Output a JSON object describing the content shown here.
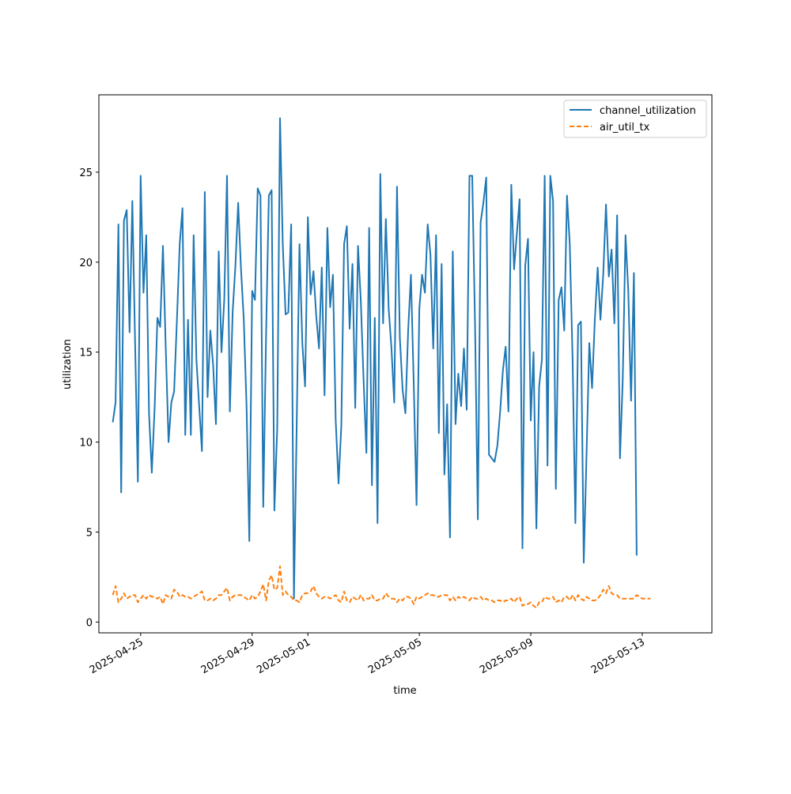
{
  "chart_data": {
    "type": "line",
    "xlabel": "time",
    "ylabel": "utilization",
    "x_axis_type": "date",
    "xlim": [
      "2025-04-23T12:00",
      "2025-05-15T12:00"
    ],
    "ylim": [
      -0.6,
      29.3
    ],
    "x_ticks": [
      "2025-04-25",
      "2025-04-29",
      "2025-05-01",
      "2025-05-05",
      "2025-05-09",
      "2025-05-13"
    ],
    "y_ticks": [
      0,
      5,
      10,
      15,
      20,
      25
    ],
    "grid": false,
    "legend_position": "top-right",
    "start": "2025-04-24T00:00",
    "step_hours": 2.4,
    "series": [
      {
        "name": "channel_utilization",
        "color": "#1f77b4",
        "style": "solid",
        "values": [
          11.1,
          12.2,
          22.1,
          7.2,
          22.3,
          22.9,
          16.1,
          23.4,
          15.5,
          7.8,
          24.8,
          18.3,
          21.5,
          11.6,
          8.3,
          11.9,
          16.9,
          16.4,
          20.9,
          15.3,
          10.0,
          12.2,
          12.8,
          16.7,
          21.0,
          23.0,
          10.4,
          16.8,
          10.4,
          21.5,
          14.6,
          12.0,
          9.5,
          23.9,
          12.5,
          16.2,
          14.3,
          11.0,
          20.6,
          15.0,
          17.9,
          24.8,
          11.7,
          17.2,
          19.8,
          23.3,
          19.6,
          16.8,
          12.0,
          4.5,
          18.4,
          17.9,
          24.1,
          23.7,
          6.4,
          16.0,
          23.7,
          24.0,
          6.2,
          10.8,
          28.0,
          21.0,
          17.1,
          17.2,
          22.1,
          1.3,
          11.0,
          21.0,
          15.5,
          13.1,
          22.5,
          18.2,
          19.5,
          17.0,
          15.2,
          19.7,
          12.6,
          21.9,
          17.5,
          19.3,
          11.2,
          7.7,
          10.9,
          21.0,
          22.0,
          16.3,
          19.9,
          11.9,
          20.9,
          17.9,
          13.4,
          9.4,
          21.9,
          7.6,
          16.9,
          5.5,
          24.9,
          16.6,
          22.4,
          17.4,
          15.2,
          12.2,
          24.2,
          15.8,
          12.9,
          11.6,
          16.2,
          19.3,
          13.2,
          6.5,
          17.4,
          19.3,
          18.3,
          22.1,
          20.4,
          15.2,
          21.5,
          10.5,
          19.9,
          8.2,
          12.1,
          4.7,
          20.6,
          11.0,
          13.8,
          12.0,
          15.2,
          11.8,
          24.8,
          24.8,
          16.4,
          5.7,
          22.2,
          23.3,
          24.7,
          9.3,
          9.1,
          8.9,
          9.8,
          11.7,
          14.0,
          15.3,
          11.7,
          24.3,
          19.6,
          21.6,
          23.5,
          4.1,
          19.8,
          21.3,
          11.2,
          15.0,
          5.2,
          13.1,
          14.6,
          24.8,
          8.7,
          24.8,
          23.4,
          7.4,
          17.9,
          18.6,
          16.2,
          23.7,
          21.0,
          14.6,
          5.5,
          16.5,
          16.7,
          3.3,
          9.3,
          15.5,
          13.0,
          16.8,
          19.7,
          16.8,
          19.3,
          23.2,
          19.2,
          20.7,
          16.6,
          22.6,
          9.1,
          13.5,
          21.5,
          18.4,
          12.3,
          19.4,
          3.7
        ]
      },
      {
        "name": "air_util_tx",
        "color": "#ff7f0e",
        "style": "dashed",
        "values": [
          1.5,
          2.0,
          1.1,
          1.3,
          1.6,
          1.3,
          1.4,
          1.5,
          1.5,
          1.1,
          1.3,
          1.5,
          1.3,
          1.5,
          1.4,
          1.4,
          1.3,
          1.4,
          1.0,
          1.5,
          1.4,
          1.3,
          1.8,
          1.7,
          1.4,
          1.5,
          1.4,
          1.4,
          1.3,
          1.4,
          1.5,
          1.6,
          1.7,
          1.2,
          1.2,
          1.3,
          1.2,
          1.3,
          1.5,
          1.5,
          1.7,
          1.9,
          1.2,
          1.4,
          1.5,
          1.5,
          1.5,
          1.4,
          1.3,
          1.2,
          1.5,
          1.3,
          1.4,
          1.7,
          2.1,
          1.2,
          2.3,
          2.6,
          1.8,
          1.9,
          3.1,
          1.5,
          1.7,
          1.5,
          1.4,
          1.2,
          1.2,
          1.1,
          1.5,
          1.6,
          1.6,
          1.7,
          2.0,
          1.6,
          1.4,
          1.3,
          1.4,
          1.4,
          1.3,
          1.4,
          1.5,
          1.2,
          1.1,
          1.7,
          1.2,
          1.1,
          1.4,
          1.3,
          1.2,
          1.5,
          1.2,
          1.3,
          1.3,
          1.5,
          1.2,
          1.2,
          1.3,
          1.3,
          1.6,
          1.4,
          1.3,
          1.3,
          1.1,
          1.3,
          1.2,
          1.4,
          1.4,
          1.3,
          1.0,
          1.4,
          1.3,
          1.4,
          1.5,
          1.6,
          1.5,
          1.5,
          1.4,
          1.4,
          1.5,
          1.5,
          1.5,
          1.2,
          1.4,
          1.2,
          1.4,
          1.3,
          1.4,
          1.3,
          1.2,
          1.4,
          1.3,
          1.3,
          1.4,
          1.2,
          1.3,
          1.2,
          1.2,
          1.1,
          1.2,
          1.2,
          1.1,
          1.2,
          1.2,
          1.3,
          1.1,
          1.3,
          1.4,
          0.9,
          1.0,
          1.0,
          1.1,
          0.9,
          0.8,
          1.1,
          1.1,
          1.4,
          1.3,
          1.3,
          1.4,
          1.1,
          1.2,
          1.1,
          1.4,
          1.4,
          1.2,
          1.5,
          1.2,
          1.5,
          1.3,
          1.2,
          1.4,
          1.3,
          1.2,
          1.2,
          1.3,
          1.5,
          1.8,
          1.6,
          2.0,
          1.6,
          1.5,
          1.5,
          1.3,
          1.3,
          1.3,
          1.3,
          1.3,
          1.3,
          1.5,
          1.4,
          1.3,
          1.3,
          1.3,
          1.3
        ]
      }
    ]
  }
}
